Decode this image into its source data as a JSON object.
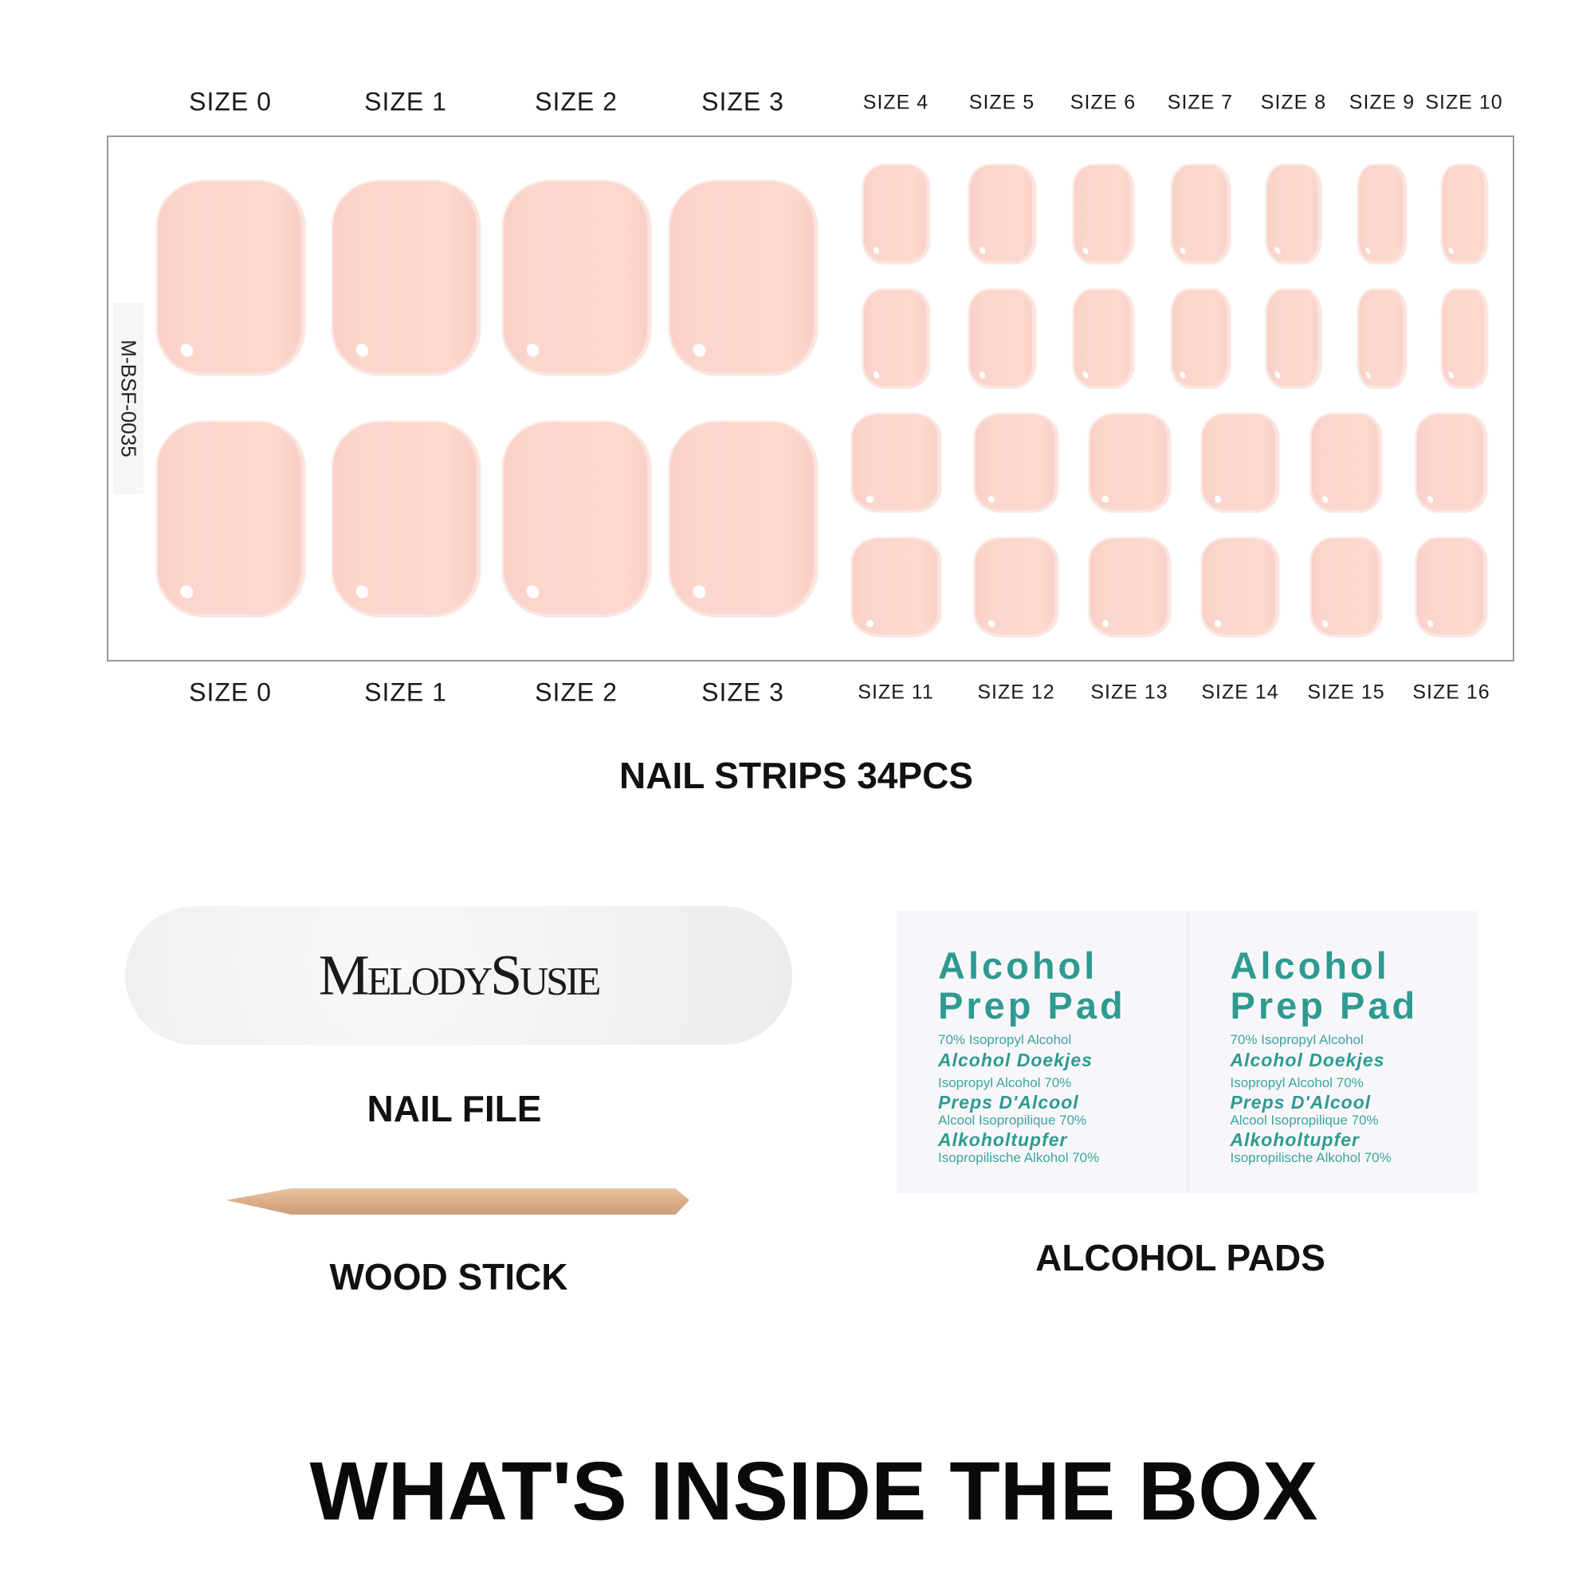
{
  "sizes_top_big": [
    "SIZE 0",
    "SIZE 1",
    "SIZE 2",
    "SIZE 3"
  ],
  "sizes_top_small": [
    "SIZE 4",
    "SIZE 5",
    "SIZE 6",
    "SIZE 7",
    "SIZE 8",
    "SIZE 9",
    "SIZE 10"
  ],
  "sizes_bottom_big": [
    "SIZE 0",
    "SIZE 1",
    "SIZE 2",
    "SIZE 3"
  ],
  "sizes_bottom_small": [
    "SIZE 11",
    "SIZE 12",
    "SIZE 13",
    "SIZE 14",
    "SIZE 15",
    "SIZE 16"
  ],
  "sheet_code": "M-BSF-0035",
  "nail_color": "#fbd5cc",
  "nail_strips_label": "NAIL STRIPS 34PCS",
  "nail_file": {
    "logo": "MelodySusie",
    "label": "NAIL FILE"
  },
  "wood_stick_label": "WOOD STICK",
  "alcohol_pad": {
    "title_line1": "Alcohol",
    "title_line2": "Prep Pad",
    "lines": [
      {
        "text": "70% Isopropyl Alcohol",
        "style": "small"
      },
      {
        "text": "Alcohol Doekjes",
        "style": "italic"
      },
      {
        "text": "Isopropyl Alcohol 70%",
        "style": "small"
      },
      {
        "text": "Preps D'Alcool",
        "style": "italic"
      },
      {
        "text": "Alcool Isopropilique  70%",
        "style": "small"
      },
      {
        "text": "Alkoholtupfer",
        "style": "italic"
      },
      {
        "text": "Isopropilische Alkohol 70%",
        "style": "small"
      }
    ],
    "text_color": "#2e9a90"
  },
  "alcohol_pads_label": "ALCOHOL PADS",
  "page_title": "WHAT'S INSIDE THE BOX"
}
